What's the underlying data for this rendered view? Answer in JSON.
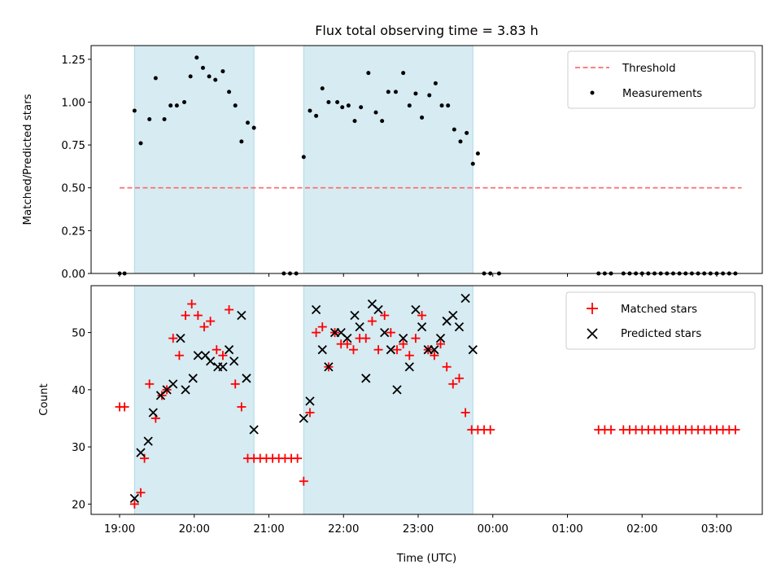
{
  "chart_data": [
    {
      "type": "scatter",
      "title": "Flux total observing time = 3.83 h",
      "xlabel": "",
      "ylabel": "Matched/Predicted stars",
      "ylim": [
        0,
        1.33
      ],
      "yticks": [
        "0.00",
        "0.25",
        "0.50",
        "0.75",
        "1.00",
        "1.25"
      ],
      "yticks_values": [
        0,
        0.25,
        0.5,
        0.75,
        1.0,
        1.25
      ],
      "legend": {
        "position": "top-right",
        "entries": [
          "Threshold",
          "Measurements"
        ]
      },
      "threshold": {
        "name": "Threshold",
        "value": 0.5,
        "x_start": "19:00",
        "x_end": "03:20",
        "color": "#ff6f6f"
      },
      "observing_windows": [
        [
          "19:12",
          "20:48"
        ],
        [
          "21:28",
          "23:44"
        ]
      ],
      "window_color": "#add8e6",
      "series": [
        {
          "name": "Measurements",
          "color": "#000000",
          "x": [
            "19:00",
            "19:04",
            "19:12",
            "19:17",
            "19:24",
            "19:29",
            "19:36",
            "19:41",
            "19:46",
            "19:52",
            "19:57",
            "20:02",
            "20:07",
            "20:12",
            "20:17",
            "20:23",
            "20:28",
            "20:33",
            "20:38",
            "20:43",
            "20:48",
            "21:12",
            "21:17",
            "21:22",
            "21:28",
            "21:33",
            "21:38",
            "21:43",
            "21:48",
            "21:55",
            "21:59",
            "22:04",
            "22:09",
            "22:14",
            "22:20",
            "22:26",
            "22:31",
            "22:36",
            "22:42",
            "22:48",
            "22:53",
            "22:58",
            "23:03",
            "23:09",
            "23:14",
            "23:19",
            "23:24",
            "23:29",
            "23:34",
            "23:39",
            "23:44",
            "23:48",
            "23:53",
            "23:58",
            "00:05",
            "01:25",
            "01:30",
            "01:35",
            "01:45",
            "01:50",
            "01:55",
            "02:00",
            "02:05",
            "02:10",
            "02:15",
            "02:20",
            "02:25",
            "02:30",
            "02:35",
            "02:40",
            "02:45",
            "02:50",
            "02:55",
            "03:00",
            "03:05",
            "03:10",
            "03:15"
          ],
          "values": [
            0,
            0,
            0.95,
            0.76,
            0.9,
            1.14,
            0.9,
            0.98,
            0.98,
            1.0,
            1.15,
            1.26,
            1.2,
            1.15,
            1.13,
            1.18,
            1.06,
            0.98,
            0.77,
            0.88,
            0.85,
            0,
            0,
            0,
            0.68,
            0.95,
            0.92,
            1.08,
            1.0,
            1.0,
            0.97,
            0.98,
            0.89,
            0.97,
            1.17,
            0.94,
            0.89,
            1.06,
            1.06,
            1.17,
            0.98,
            1.05,
            0.91,
            1.04,
            1.11,
            0.98,
            0.98,
            0.84,
            0.77,
            0.82,
            0.64,
            0.7,
            0,
            0,
            0,
            0,
            0,
            0,
            0,
            0,
            0,
            0,
            0,
            0,
            0,
            0,
            0,
            0,
            0,
            0,
            0,
            0,
            0,
            0,
            0,
            0,
            0
          ]
        }
      ]
    },
    {
      "type": "scatter",
      "title": "",
      "xlabel": "Time (UTC)",
      "ylabel": "Count",
      "ylim": [
        18.2,
        58.2
      ],
      "yticks": [
        "20",
        "30",
        "40",
        "50"
      ],
      "yticks_values": [
        20,
        30,
        40,
        50
      ],
      "xticks": [
        "19:00",
        "20:00",
        "21:00",
        "22:00",
        "23:00",
        "00:00",
        "01:00",
        "02:00",
        "03:00"
      ],
      "legend": {
        "position": "top-right",
        "entries": [
          "Matched stars",
          "Predicted stars"
        ]
      },
      "observing_windows": [
        [
          "19:12",
          "20:48"
        ],
        [
          "21:28",
          "23:44"
        ]
      ],
      "window_color": "#add8e6",
      "series": [
        {
          "name": "Matched stars",
          "marker": "plus",
          "color": "#ff0000",
          "x": [
            "19:00",
            "19:04",
            "19:12",
            "19:17",
            "19:20",
            "19:24",
            "19:29",
            "19:34",
            "19:38",
            "19:43",
            "19:48",
            "19:53",
            "19:58",
            "20:03",
            "20:08",
            "20:13",
            "20:18",
            "20:23",
            "20:28",
            "20:33",
            "20:38",
            "20:43",
            "20:48",
            "20:53",
            "20:58",
            "21:03",
            "21:08",
            "21:13",
            "21:18",
            "21:23",
            "21:28",
            "21:33",
            "21:38",
            "21:43",
            "21:48",
            "21:53",
            "21:58",
            "22:03",
            "22:08",
            "22:13",
            "22:18",
            "22:23",
            "22:28",
            "22:33",
            "22:38",
            "22:43",
            "22:48",
            "22:53",
            "22:58",
            "23:03",
            "23:08",
            "23:13",
            "23:18",
            "23:23",
            "23:28",
            "23:33",
            "23:38",
            "23:43",
            "23:48",
            "23:53",
            "23:58",
            "01:25",
            "01:30",
            "01:35",
            "01:45",
            "01:50",
            "01:55",
            "02:00",
            "02:05",
            "02:10",
            "02:15",
            "02:20",
            "02:25",
            "02:30",
            "02:35",
            "02:40",
            "02:45",
            "02:50",
            "02:55",
            "03:00",
            "03:05",
            "03:10",
            "03:15"
          ],
          "values": [
            37,
            37,
            20,
            22,
            28,
            41,
            35,
            39,
            40,
            49,
            46,
            53,
            55,
            53,
            51,
            52,
            47,
            46,
            54,
            41,
            37,
            28,
            28,
            28,
            28,
            28,
            28,
            28,
            28,
            28,
            24,
            36,
            50,
            51,
            44,
            50,
            48,
            48,
            47,
            49,
            49,
            52,
            47,
            53,
            50,
            47,
            48,
            46,
            49,
            53,
            47,
            46,
            48,
            44,
            41,
            42,
            36,
            33,
            33,
            33,
            33,
            33,
            33,
            33,
            33,
            33,
            33,
            33,
            33,
            33,
            33,
            33,
            33,
            33,
            33,
            33,
            33,
            33,
            33,
            33,
            33,
            33,
            33
          ]
        },
        {
          "name": "Predicted stars",
          "marker": "x",
          "color": "#000000",
          "x": [
            "19:12",
            "19:17",
            "19:23",
            "19:27",
            "19:33",
            "19:38",
            "19:43",
            "19:49",
            "19:53",
            "19:59",
            "20:03",
            "20:09",
            "20:13",
            "20:19",
            "20:23",
            "20:28",
            "20:32",
            "20:38",
            "20:42",
            "20:48",
            "21:28",
            "21:33",
            "21:38",
            "21:43",
            "21:48",
            "21:53",
            "21:58",
            "22:03",
            "22:09",
            "22:13",
            "22:18",
            "22:23",
            "22:28",
            "22:33",
            "22:38",
            "22:43",
            "22:48",
            "22:53",
            "22:58",
            "23:03",
            "23:08",
            "23:13",
            "23:18",
            "23:23",
            "23:28",
            "23:33",
            "23:38",
            "23:44"
          ],
          "values": [
            21,
            29,
            31,
            36,
            39,
            40,
            41,
            49,
            40,
            42,
            46,
            46,
            45,
            44,
            44,
            47,
            45,
            53,
            42,
            33,
            35,
            38,
            54,
            47,
            44,
            50,
            50,
            49,
            53,
            51,
            42,
            55,
            54,
            50,
            47,
            40,
            49,
            44,
            54,
            51,
            47,
            47,
            49,
            52,
            53,
            51,
            56,
            47
          ]
        }
      ]
    }
  ]
}
